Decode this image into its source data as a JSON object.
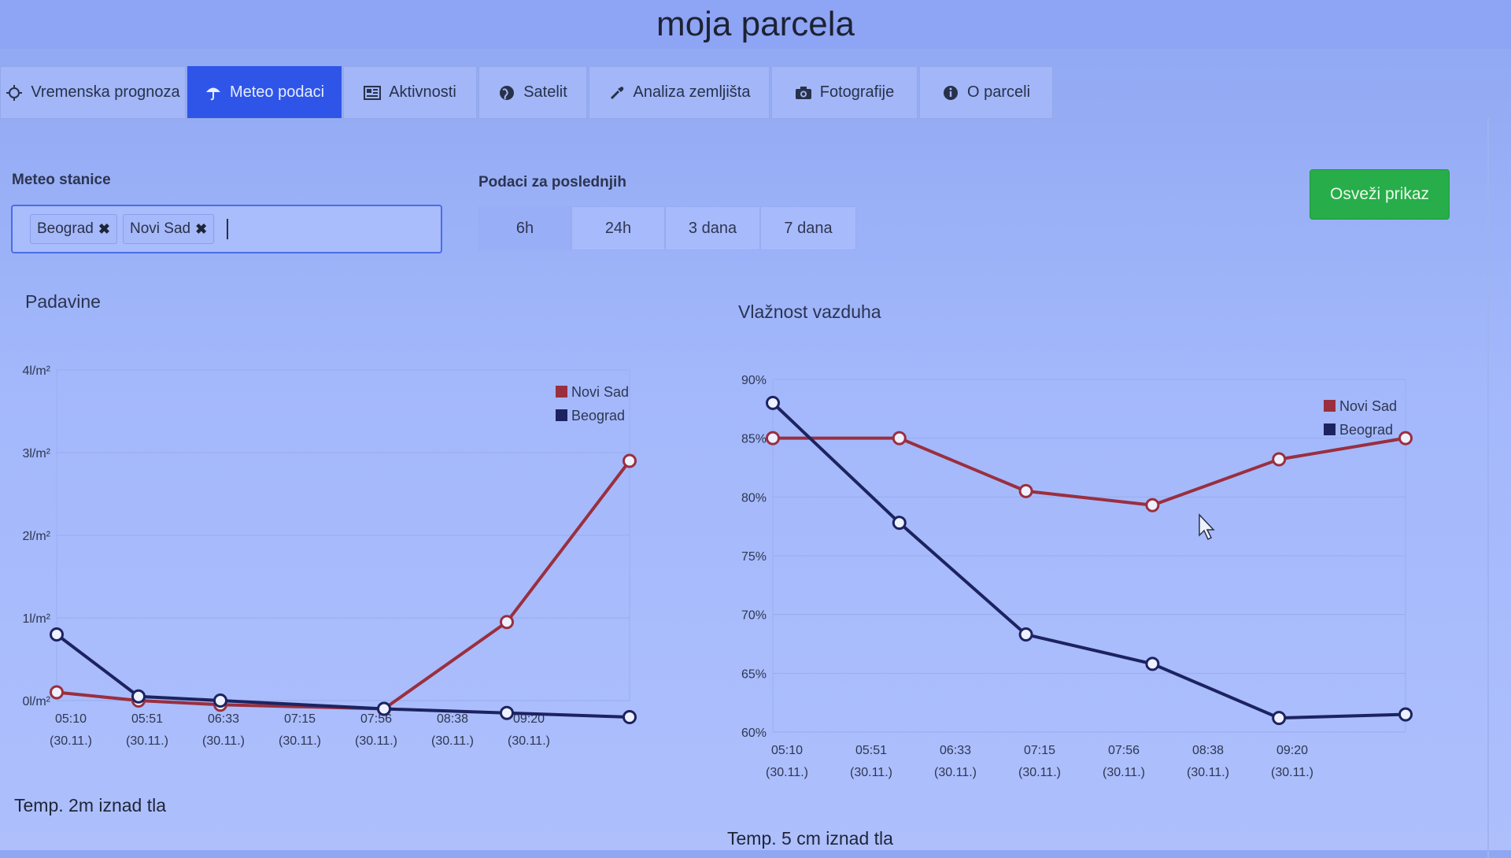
{
  "app": {
    "title": "moja parcela"
  },
  "tabs": [
    {
      "label": "Vremenska prognoza",
      "icon": "sun-icon",
      "active": false
    },
    {
      "label": "Meteo podaci",
      "icon": "umbrella-icon",
      "active": true
    },
    {
      "label": "Aktivnosti",
      "icon": "newspaper-icon",
      "active": false
    },
    {
      "label": "Satelit",
      "icon": "globe-icon",
      "active": false
    },
    {
      "label": "Analiza zemljišta",
      "icon": "eyedropper-icon",
      "active": false
    },
    {
      "label": "Fotografije",
      "icon": "camera-icon",
      "active": false
    },
    {
      "label": "O parceli",
      "icon": "info-icon",
      "active": false
    }
  ],
  "filters": {
    "stations_label": "Meteo stanice",
    "stations": [
      "Beograd",
      "Novi Sad"
    ],
    "period_label": "Podaci za poslednjih",
    "periods": [
      "6h",
      "24h",
      "3 dana",
      "7 dana"
    ],
    "active_period": "6h",
    "refresh_label": "Osveži prikaz"
  },
  "colors": {
    "novi_sad": "#9a2f3f",
    "beograd": "#1c2360",
    "accent": "#2f55e8",
    "refresh": "#27ad4a"
  },
  "bottom_titles": {
    "left": "Temp. 2m iznad tla",
    "right": "Temp. 5 cm iznad tla"
  },
  "chart_data": [
    {
      "type": "line",
      "title": "Padavine",
      "x": [
        "05:10",
        "05:51",
        "06:33",
        "07:15",
        "07:56",
        "08:38",
        "09:20"
      ],
      "x_sub": "(30.11.)",
      "y_ticks": [
        "0l/m²",
        "1l/m²",
        "2l/m²",
        "3l/m²",
        "4l/m²"
      ],
      "ylim": [
        0,
        4
      ],
      "grid": true,
      "legend": "top-right",
      "series": [
        {
          "name": "Novi Sad",
          "points": [
            [
              0,
              0.1
            ],
            [
              1,
              0.0
            ],
            [
              2,
              -0.05
            ],
            [
              4,
              -0.1
            ],
            [
              5.5,
              0.95
            ],
            [
              7,
              2.9
            ]
          ]
        },
        {
          "name": "Beograd",
          "points": [
            [
              0,
              0.8
            ],
            [
              1,
              0.05
            ],
            [
              2,
              0.0
            ],
            [
              4,
              -0.1
            ],
            [
              5.5,
              -0.15
            ],
            [
              7,
              -0.2
            ]
          ]
        }
      ]
    },
    {
      "type": "line",
      "title": "Vlažnost vazduha",
      "x": [
        "05:10",
        "05:51",
        "06:33",
        "07:15",
        "07:56",
        "08:38",
        "09:20"
      ],
      "x_sub": "(30.11.)",
      "y_ticks": [
        "60%",
        "65%",
        "70%",
        "75%",
        "80%",
        "85%",
        "90%"
      ],
      "ylim": [
        60,
        90
      ],
      "grid": true,
      "legend": "top-right",
      "series": [
        {
          "name": "Novi Sad",
          "points": [
            [
              0,
              85
            ],
            [
              1.5,
              85
            ],
            [
              3,
              80.5
            ],
            [
              4.5,
              79.3
            ],
            [
              6,
              83.2
            ],
            [
              7.5,
              85
            ]
          ]
        },
        {
          "name": "Beograd",
          "points": [
            [
              0,
              88
            ],
            [
              1.5,
              77.8
            ],
            [
              3,
              68.3
            ],
            [
              4.5,
              65.8
            ],
            [
              6,
              61.2
            ],
            [
              7.5,
              61.5
            ]
          ]
        }
      ]
    }
  ]
}
